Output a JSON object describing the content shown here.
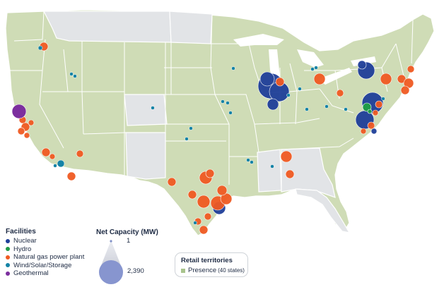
{
  "colors": {
    "presence_fill": "#cfdcb6",
    "non_presence_fill": "#e2e4e7",
    "border": "#ffffff",
    "nuclear": "#1f3f99",
    "hydro": "#1f9a48",
    "gas": "#f05a22",
    "wind": "#1583a6",
    "geothermal": "#7c2f9e"
  },
  "legend": {
    "facilities_title": "Facilities",
    "facilities": [
      {
        "label": "Nuclear",
        "color": "#1f3f99"
      },
      {
        "label": "Hydro",
        "color": "#1f9a48"
      },
      {
        "label": "Natural gas power plant",
        "color": "#f05a22"
      },
      {
        "label": "Wind/Solar/Storage",
        "color": "#1583a6"
      },
      {
        "label": "Geothermal",
        "color": "#7c2f9e"
      }
    ],
    "capacity_title": "Net Capacity (MW)",
    "capacity_min": "1",
    "capacity_max": "2,390",
    "retail_title": "Retail territories",
    "retail_presence": "Presence",
    "retail_presence_note": "(40 states)"
  }
}
